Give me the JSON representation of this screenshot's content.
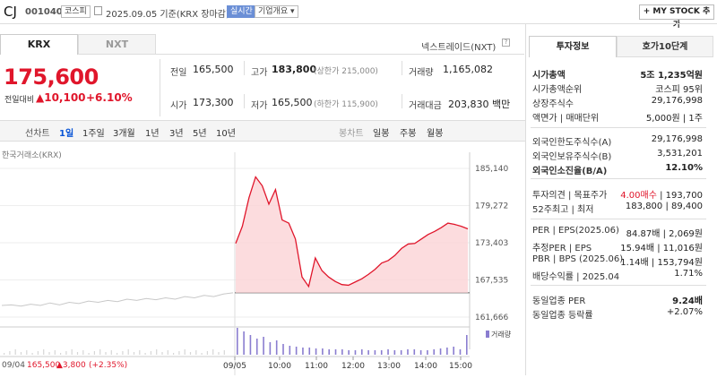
{
  "header": {
    "name": "CJ",
    "code": "001040",
    "market_badge": "코스피",
    "date_text": "2025.09.05 기준(KRX 장마감)",
    "realtime_badge": "실시간",
    "overview_badge": "기업개요",
    "my_stock_label": "+ MY STOCK 추가"
  },
  "tabs": {
    "krx": "KRX",
    "nxt": "NXT"
  },
  "nextrade_label": "넥스트레이드(NXT)",
  "quote": {
    "price": "175,600",
    "change_label": "전일대비",
    "change_value": "▲10,100",
    "change_rate": "+6.10%",
    "prev_label": "전일",
    "prev_value": "165,500",
    "high_label": "고가",
    "high_value": "183,800",
    "upper_limit": "(상한가 215,000)",
    "volume_label": "거래량",
    "volume_value": "1,165,082",
    "open_label": "시가",
    "open_value": "173,300",
    "low_label": "저가",
    "low_value": "165,500",
    "lower_limit": "(하한가 115,900)",
    "amount_label": "거래대금",
    "amount_value": "203,830 백만"
  },
  "periods": {
    "line_label": "선차트",
    "items": [
      "1일",
      "1주일",
      "3개월",
      "1년",
      "3년",
      "5년",
      "10년"
    ],
    "selected": "1일",
    "candle_label": "봉차트",
    "candle_items": [
      "일봉",
      "주봉",
      "월봉"
    ]
  },
  "chart_data": {
    "type": "line",
    "source_label": "한국거래소(KRX)",
    "y_ticks": [
      "185,140",
      "179,272",
      "173,403",
      "167,535",
      "161,666"
    ],
    "ylim": [
      161666,
      185140
    ],
    "prev_close": 165500,
    "x_ticks": [
      "09/05",
      "10:00",
      "11:00",
      "12:00",
      "13:00",
      "14:00",
      "15:00"
    ],
    "volume_label": "거래량",
    "prev_day_label": "09/04",
    "prev_day_close": "165,500",
    "prev_day_change": "▲3,800",
    "prev_day_rate": "(+2.35%)",
    "series_prev": [
      163500,
      163600,
      163400,
      163700,
      163500,
      163900,
      163600,
      164000,
      163800,
      164200,
      164000,
      164300,
      164100,
      164500,
      164300,
      164600,
      164400,
      164700,
      164500,
      164900,
      164700,
      165100,
      164900,
      165300,
      165500
    ],
    "series_today": [
      173300,
      176000,
      180500,
      183800,
      182400,
      179500,
      181800,
      177000,
      176500,
      174000,
      168000,
      166500,
      171000,
      169000,
      168000,
      167300,
      166800,
      166700,
      167200,
      167700,
      168400,
      169200,
      170200,
      170600,
      171400,
      172500,
      173200,
      173300,
      174000,
      174700,
      175200,
      175800,
      176500,
      176300,
      176000,
      175600
    ]
  },
  "side": {
    "tab_invest": "투자정보",
    "tab_orderbook": "호가10단계",
    "rows1": [
      {
        "l": "시가총액",
        "r": "5조 1,235억원"
      },
      {
        "l": "시가총액순위",
        "r": "코스피 95위"
      },
      {
        "l": "상장주식수",
        "r": "29,176,998"
      },
      {
        "l": "액면가 | 매매단위",
        "r": "5,000원 | 1주"
      }
    ],
    "rows2": [
      {
        "l": "외국인한도주식수(A)",
        "r": "29,176,998"
      },
      {
        "l": "외국인보유주식수(B)",
        "r": "3,531,201"
      },
      {
        "l": "외국인소진율(B/A)",
        "r": "12.10%"
      }
    ],
    "opinion_label": "투자의견 | 목표주가",
    "opinion_value": "4.00매수",
    "target_value": "193,700",
    "week52_label": "52주최고 | 최저",
    "week52_value": "183,800 | 89,400",
    "rows4": [
      {
        "l": "PER | EPS(2025.06)",
        "r": "84.87배 | 2,069원"
      },
      {
        "l": "추정PER | EPS",
        "r": "15.94배 | 11,016원"
      },
      {
        "l": "PBR | BPS (2025.06)",
        "r": "1.14배 | 153,794원"
      },
      {
        "l": "배당수익률 | 2025.04",
        "r": "1.71%"
      }
    ],
    "industry_per_label": "동일업종 PER",
    "industry_per_value": "9.24배",
    "industry_rate_label": "동일업종 등락률",
    "industry_rate_value": "+2.07%"
  }
}
